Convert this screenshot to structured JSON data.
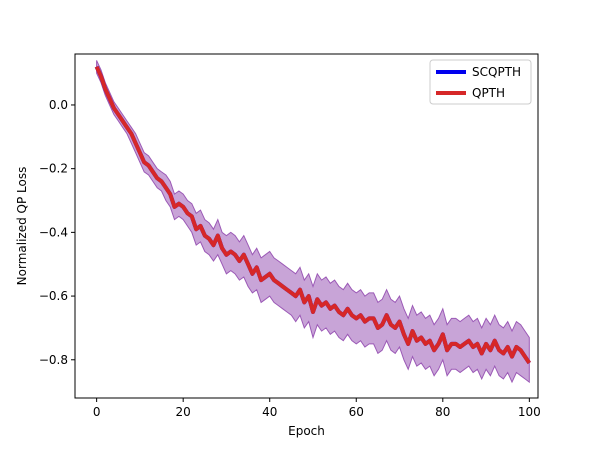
{
  "chart_data": {
    "type": "line",
    "title": "",
    "xlabel": "Epoch",
    "ylabel": "Normalized QP Loss",
    "xlim": [
      -5,
      102
    ],
    "ylim": [
      -0.92,
      0.16
    ],
    "xticks": [
      0,
      20,
      40,
      60,
      80,
      100
    ],
    "xtick_labels": [
      "0",
      "20",
      "40",
      "60",
      "80",
      "100"
    ],
    "yticks": [
      0.0,
      -0.2,
      -0.4,
      -0.6,
      -0.8
    ],
    "ytick_labels": [
      "0.0",
      "−0.2",
      "−0.4",
      "−0.6",
      "−0.8"
    ],
    "grid": false,
    "legend": {
      "position": "top-right",
      "entries": [
        "SCQPTH",
        "QPTH"
      ]
    },
    "x": [
      0,
      1,
      2,
      3,
      4,
      5,
      6,
      7,
      8,
      9,
      10,
      11,
      12,
      13,
      14,
      15,
      16,
      17,
      18,
      19,
      20,
      21,
      22,
      23,
      24,
      25,
      26,
      27,
      28,
      29,
      30,
      31,
      32,
      33,
      34,
      35,
      36,
      37,
      38,
      39,
      40,
      41,
      42,
      43,
      44,
      45,
      46,
      47,
      48,
      49,
      50,
      51,
      52,
      53,
      54,
      55,
      56,
      57,
      58,
      59,
      60,
      61,
      62,
      63,
      64,
      65,
      66,
      67,
      68,
      69,
      70,
      71,
      72,
      73,
      74,
      75,
      76,
      77,
      78,
      79,
      80,
      81,
      82,
      83,
      84,
      85,
      86,
      87,
      88,
      89,
      90,
      91,
      92,
      93,
      94,
      95,
      96,
      97,
      98,
      99,
      100
    ],
    "series": [
      {
        "name": "SCQPTH",
        "color": "#0000ee",
        "values": [
          0.12,
          0.09,
          0.05,
          0.02,
          -0.01,
          -0.03,
          -0.05,
          -0.07,
          -0.09,
          -0.12,
          -0.15,
          -0.18,
          -0.19,
          -0.21,
          -0.23,
          -0.24,
          -0.26,
          -0.28,
          -0.32,
          -0.31,
          -0.32,
          -0.34,
          -0.35,
          -0.39,
          -0.38,
          -0.41,
          -0.42,
          -0.44,
          -0.41,
          -0.45,
          -0.47,
          -0.46,
          -0.47,
          -0.49,
          -0.47,
          -0.5,
          -0.53,
          -0.51,
          -0.55,
          -0.54,
          -0.53,
          -0.55,
          -0.56,
          -0.57,
          -0.58,
          -0.59,
          -0.6,
          -0.58,
          -0.62,
          -0.6,
          -0.65,
          -0.61,
          -0.63,
          -0.62,
          -0.64,
          -0.63,
          -0.65,
          -0.66,
          -0.64,
          -0.66,
          -0.67,
          -0.66,
          -0.68,
          -0.67,
          -0.67,
          -0.7,
          -0.69,
          -0.66,
          -0.69,
          -0.7,
          -0.68,
          -0.72,
          -0.75,
          -0.71,
          -0.74,
          -0.73,
          -0.75,
          -0.74,
          -0.77,
          -0.75,
          -0.72,
          -0.77,
          -0.75,
          -0.75,
          -0.76,
          -0.75,
          -0.74,
          -0.76,
          -0.75,
          -0.78,
          -0.75,
          -0.77,
          -0.74,
          -0.77,
          -0.78,
          -0.76,
          -0.79,
          -0.76,
          -0.77,
          -0.79,
          -0.81
        ],
        "band": {
          "lower": [
            0.1,
            0.07,
            0.03,
            0.0,
            -0.03,
            -0.05,
            -0.07,
            -0.09,
            -0.12,
            -0.15,
            -0.18,
            -0.21,
            -0.22,
            -0.24,
            -0.26,
            -0.27,
            -0.3,
            -0.32,
            -0.36,
            -0.35,
            -0.36,
            -0.38,
            -0.4,
            -0.44,
            -0.43,
            -0.46,
            -0.47,
            -0.49,
            -0.47,
            -0.5,
            -0.53,
            -0.52,
            -0.53,
            -0.55,
            -0.54,
            -0.57,
            -0.59,
            -0.58,
            -0.62,
            -0.61,
            -0.6,
            -0.62,
            -0.63,
            -0.64,
            -0.65,
            -0.66,
            -0.68,
            -0.66,
            -0.7,
            -0.68,
            -0.73,
            -0.69,
            -0.71,
            -0.7,
            -0.72,
            -0.71,
            -0.73,
            -0.74,
            -0.72,
            -0.74,
            -0.75,
            -0.74,
            -0.76,
            -0.75,
            -0.75,
            -0.78,
            -0.77,
            -0.74,
            -0.77,
            -0.78,
            -0.76,
            -0.8,
            -0.83,
            -0.79,
            -0.82,
            -0.81,
            -0.83,
            -0.82,
            -0.85,
            -0.83,
            -0.8,
            -0.85,
            -0.83,
            -0.83,
            -0.84,
            -0.83,
            -0.82,
            -0.84,
            -0.83,
            -0.86,
            -0.83,
            -0.85,
            -0.82,
            -0.85,
            -0.86,
            -0.84,
            -0.87,
            -0.84,
            -0.85,
            -0.86,
            -0.87
          ],
          "upper": [
            0.14,
            0.11,
            0.07,
            0.04,
            0.01,
            -0.01,
            -0.03,
            -0.05,
            -0.07,
            -0.09,
            -0.12,
            -0.15,
            -0.16,
            -0.18,
            -0.2,
            -0.21,
            -0.22,
            -0.24,
            -0.28,
            -0.27,
            -0.28,
            -0.3,
            -0.31,
            -0.34,
            -0.33,
            -0.36,
            -0.37,
            -0.39,
            -0.36,
            -0.4,
            -0.41,
            -0.4,
            -0.41,
            -0.43,
            -0.41,
            -0.44,
            -0.47,
            -0.45,
            -0.48,
            -0.47,
            -0.46,
            -0.48,
            -0.49,
            -0.5,
            -0.51,
            -0.52,
            -0.53,
            -0.51,
            -0.55,
            -0.53,
            -0.57,
            -0.53,
            -0.55,
            -0.54,
            -0.56,
            -0.55,
            -0.57,
            -0.58,
            -0.56,
            -0.58,
            -0.59,
            -0.58,
            -0.6,
            -0.59,
            -0.59,
            -0.62,
            -0.61,
            -0.58,
            -0.61,
            -0.62,
            -0.6,
            -0.64,
            -0.67,
            -0.63,
            -0.66,
            -0.65,
            -0.67,
            -0.66,
            -0.69,
            -0.67,
            -0.64,
            -0.69,
            -0.67,
            -0.67,
            -0.68,
            -0.67,
            -0.66,
            -0.68,
            -0.67,
            -0.7,
            -0.67,
            -0.69,
            -0.66,
            -0.69,
            -0.7,
            -0.68,
            -0.71,
            -0.68,
            -0.69,
            -0.71,
            -0.73
          ]
        }
      },
      {
        "name": "QPTH",
        "color": "#d62728",
        "values": [
          0.12,
          0.09,
          0.05,
          0.02,
          -0.01,
          -0.03,
          -0.05,
          -0.07,
          -0.09,
          -0.12,
          -0.15,
          -0.18,
          -0.19,
          -0.21,
          -0.23,
          -0.24,
          -0.26,
          -0.28,
          -0.32,
          -0.31,
          -0.32,
          -0.34,
          -0.35,
          -0.39,
          -0.38,
          -0.41,
          -0.42,
          -0.44,
          -0.41,
          -0.45,
          -0.47,
          -0.46,
          -0.47,
          -0.49,
          -0.47,
          -0.5,
          -0.53,
          -0.51,
          -0.55,
          -0.54,
          -0.53,
          -0.55,
          -0.56,
          -0.57,
          -0.58,
          -0.59,
          -0.6,
          -0.58,
          -0.62,
          -0.6,
          -0.65,
          -0.61,
          -0.63,
          -0.62,
          -0.64,
          -0.63,
          -0.65,
          -0.66,
          -0.64,
          -0.66,
          -0.67,
          -0.66,
          -0.68,
          -0.67,
          -0.67,
          -0.7,
          -0.69,
          -0.66,
          -0.69,
          -0.7,
          -0.68,
          -0.72,
          -0.75,
          -0.71,
          -0.74,
          -0.73,
          -0.75,
          -0.74,
          -0.77,
          -0.75,
          -0.72,
          -0.77,
          -0.75,
          -0.75,
          -0.76,
          -0.75,
          -0.74,
          -0.76,
          -0.75,
          -0.78,
          -0.75,
          -0.77,
          -0.74,
          -0.77,
          -0.78,
          -0.76,
          -0.79,
          -0.76,
          -0.77,
          -0.79,
          -0.81
        ]
      }
    ],
    "band_color": "#9b59b6"
  }
}
